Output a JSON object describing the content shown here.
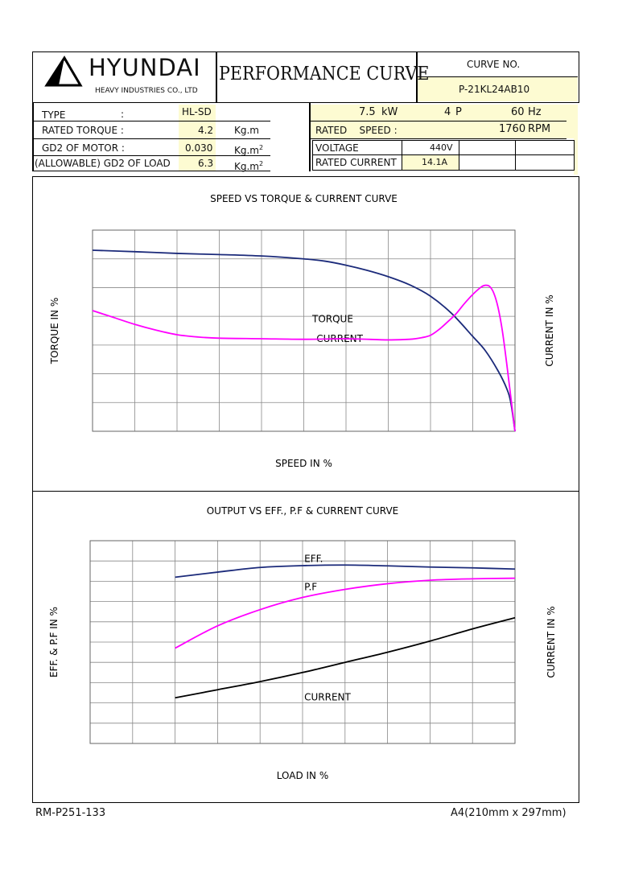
{
  "header": {
    "brand": "HYUNDAI",
    "company": "HEAVY INDUSTRIES CO., LTD",
    "title": "PERFORMANCE CURVE",
    "curve_no_label": "CURVE NO.",
    "curve_no": "P-21KL24AB10"
  },
  "specs": {
    "type_label": "TYPE",
    "type_colon": ":",
    "type_value": "HL-SD",
    "rated_torque_label": "RATED TORQUE :",
    "rated_torque_value": "4.2",
    "rated_torque_unit": "Kg.m",
    "gd2_motor_label": "GD2 OF MOTOR :",
    "gd2_motor_value": "0.030",
    "gd2_motor_unit": "Kg.m",
    "gd2_load_label": "(ALLOWABLE) GD2 OF LOAD",
    "gd2_load_value": "6.3",
    "gd2_load_unit": "Kg.m",
    "unit_superscript": "2",
    "power_value": "7.5",
    "power_unit": "kW",
    "poles_value": "4",
    "poles_unit": "P",
    "freq_value": "60",
    "freq_unit": "Hz",
    "rated_speed_label": "RATED    SPEED :",
    "rated_speed_value": "1760",
    "rated_speed_unit": "RPM",
    "voltage_label": "VOLTAGE",
    "voltage_value": "440V",
    "rated_current_label": "RATED CURRENT",
    "rated_current_value": "14.1A"
  },
  "footer": {
    "left": "RM-P251-133",
    "right": "A4(210mm x 297mm)"
  },
  "colors": {
    "current_top": "#1b2a7a",
    "torque": "#ff00ff",
    "eff": "#1b2a7a",
    "pf": "#ff00ff",
    "current_bottom": "#000000",
    "highlight": "#fdfbd2"
  },
  "chart_data": [
    {
      "type": "line",
      "title": "SPEED VS TORQUE & CURRENT CURVE",
      "xlabel": "SPEED IN %",
      "ylabel": "TORQUE IN %",
      "y2label": "CURRENT IN %",
      "xlim": [
        0,
        100
      ],
      "ylim": [
        0,
        350
      ],
      "y2lim": [
        0,
        700
      ],
      "xticks": [
        0,
        10,
        20,
        30,
        40,
        50,
        60,
        70,
        80,
        90,
        100
      ],
      "yticks": [
        0,
        50,
        100,
        150,
        200,
        250,
        300,
        350
      ],
      "y2ticks": [
        0,
        100,
        200,
        300,
        400,
        500,
        600,
        700
      ],
      "grid": true,
      "series": [
        {
          "name": "CURRENT",
          "axis": "right",
          "x": [
            0,
            10,
            20,
            30,
            40,
            50,
            55,
            60,
            65,
            70,
            75,
            80,
            85,
            90,
            93,
            96,
            98,
            99,
            100
          ],
          "y": [
            630,
            625,
            619,
            615,
            610,
            600,
            592,
            578,
            560,
            538,
            510,
            470,
            410,
            330,
            280,
            210,
            150,
            100,
            0
          ]
        },
        {
          "name": "TORQUE",
          "axis": "left",
          "x": [
            0,
            5,
            10,
            15,
            20,
            25,
            30,
            40,
            50,
            60,
            70,
            75,
            78,
            80,
            82,
            84,
            86,
            88,
            90,
            92,
            93,
            94,
            95,
            96,
            97,
            98,
            99,
            100
          ],
          "y": [
            210,
            198,
            186,
            176,
            168,
            164,
            162,
            161,
            160,
            161,
            159,
            160,
            163,
            167,
            177,
            190,
            204,
            222,
            238,
            251,
            254,
            252,
            240,
            215,
            175,
            120,
            60,
            0
          ]
        }
      ]
    },
    {
      "type": "line",
      "title": "OUTPUT VS EFF., P.F & CURRENT CURVE",
      "xlabel": "LOAD IN %",
      "ylabel": "EFF. & P.F IN %",
      "y2label": "CURRENT IN %",
      "xlim": [
        0,
        125
      ],
      "ylim": [
        0,
        100
      ],
      "y2lim": [
        0,
        200
      ],
      "xticks": [
        0,
        25,
        50,
        75,
        100,
        125
      ],
      "yticks": [
        0,
        10,
        20,
        30,
        40,
        50,
        60,
        70,
        80,
        90,
        100
      ],
      "y2ticks": [
        0,
        20,
        40,
        60,
        80,
        100,
        120,
        140,
        160,
        180,
        200
      ],
      "grid": true,
      "series": [
        {
          "name": "EFF.",
          "axis": "left",
          "x": [
            25,
            37.5,
            50,
            62.5,
            75,
            87.5,
            100,
            112.5,
            125
          ],
          "y": [
            82,
            84.5,
            86.8,
            87.7,
            88,
            87.6,
            87,
            86.6,
            86
          ]
        },
        {
          "name": "P.F",
          "axis": "left",
          "x": [
            25,
            37.5,
            50,
            62.5,
            75,
            87.5,
            100,
            112.5,
            125
          ],
          "y": [
            47,
            58,
            66,
            72,
            76,
            78.8,
            80.5,
            81.2,
            81.5
          ]
        },
        {
          "name": "CURRENT",
          "axis": "right",
          "x": [
            25,
            37.5,
            50,
            62.5,
            75,
            87.5,
            100,
            112.5,
            125
          ],
          "y": [
            45,
            53,
            61,
            70,
            80,
            90,
            101,
            113,
            124
          ]
        }
      ]
    }
  ]
}
